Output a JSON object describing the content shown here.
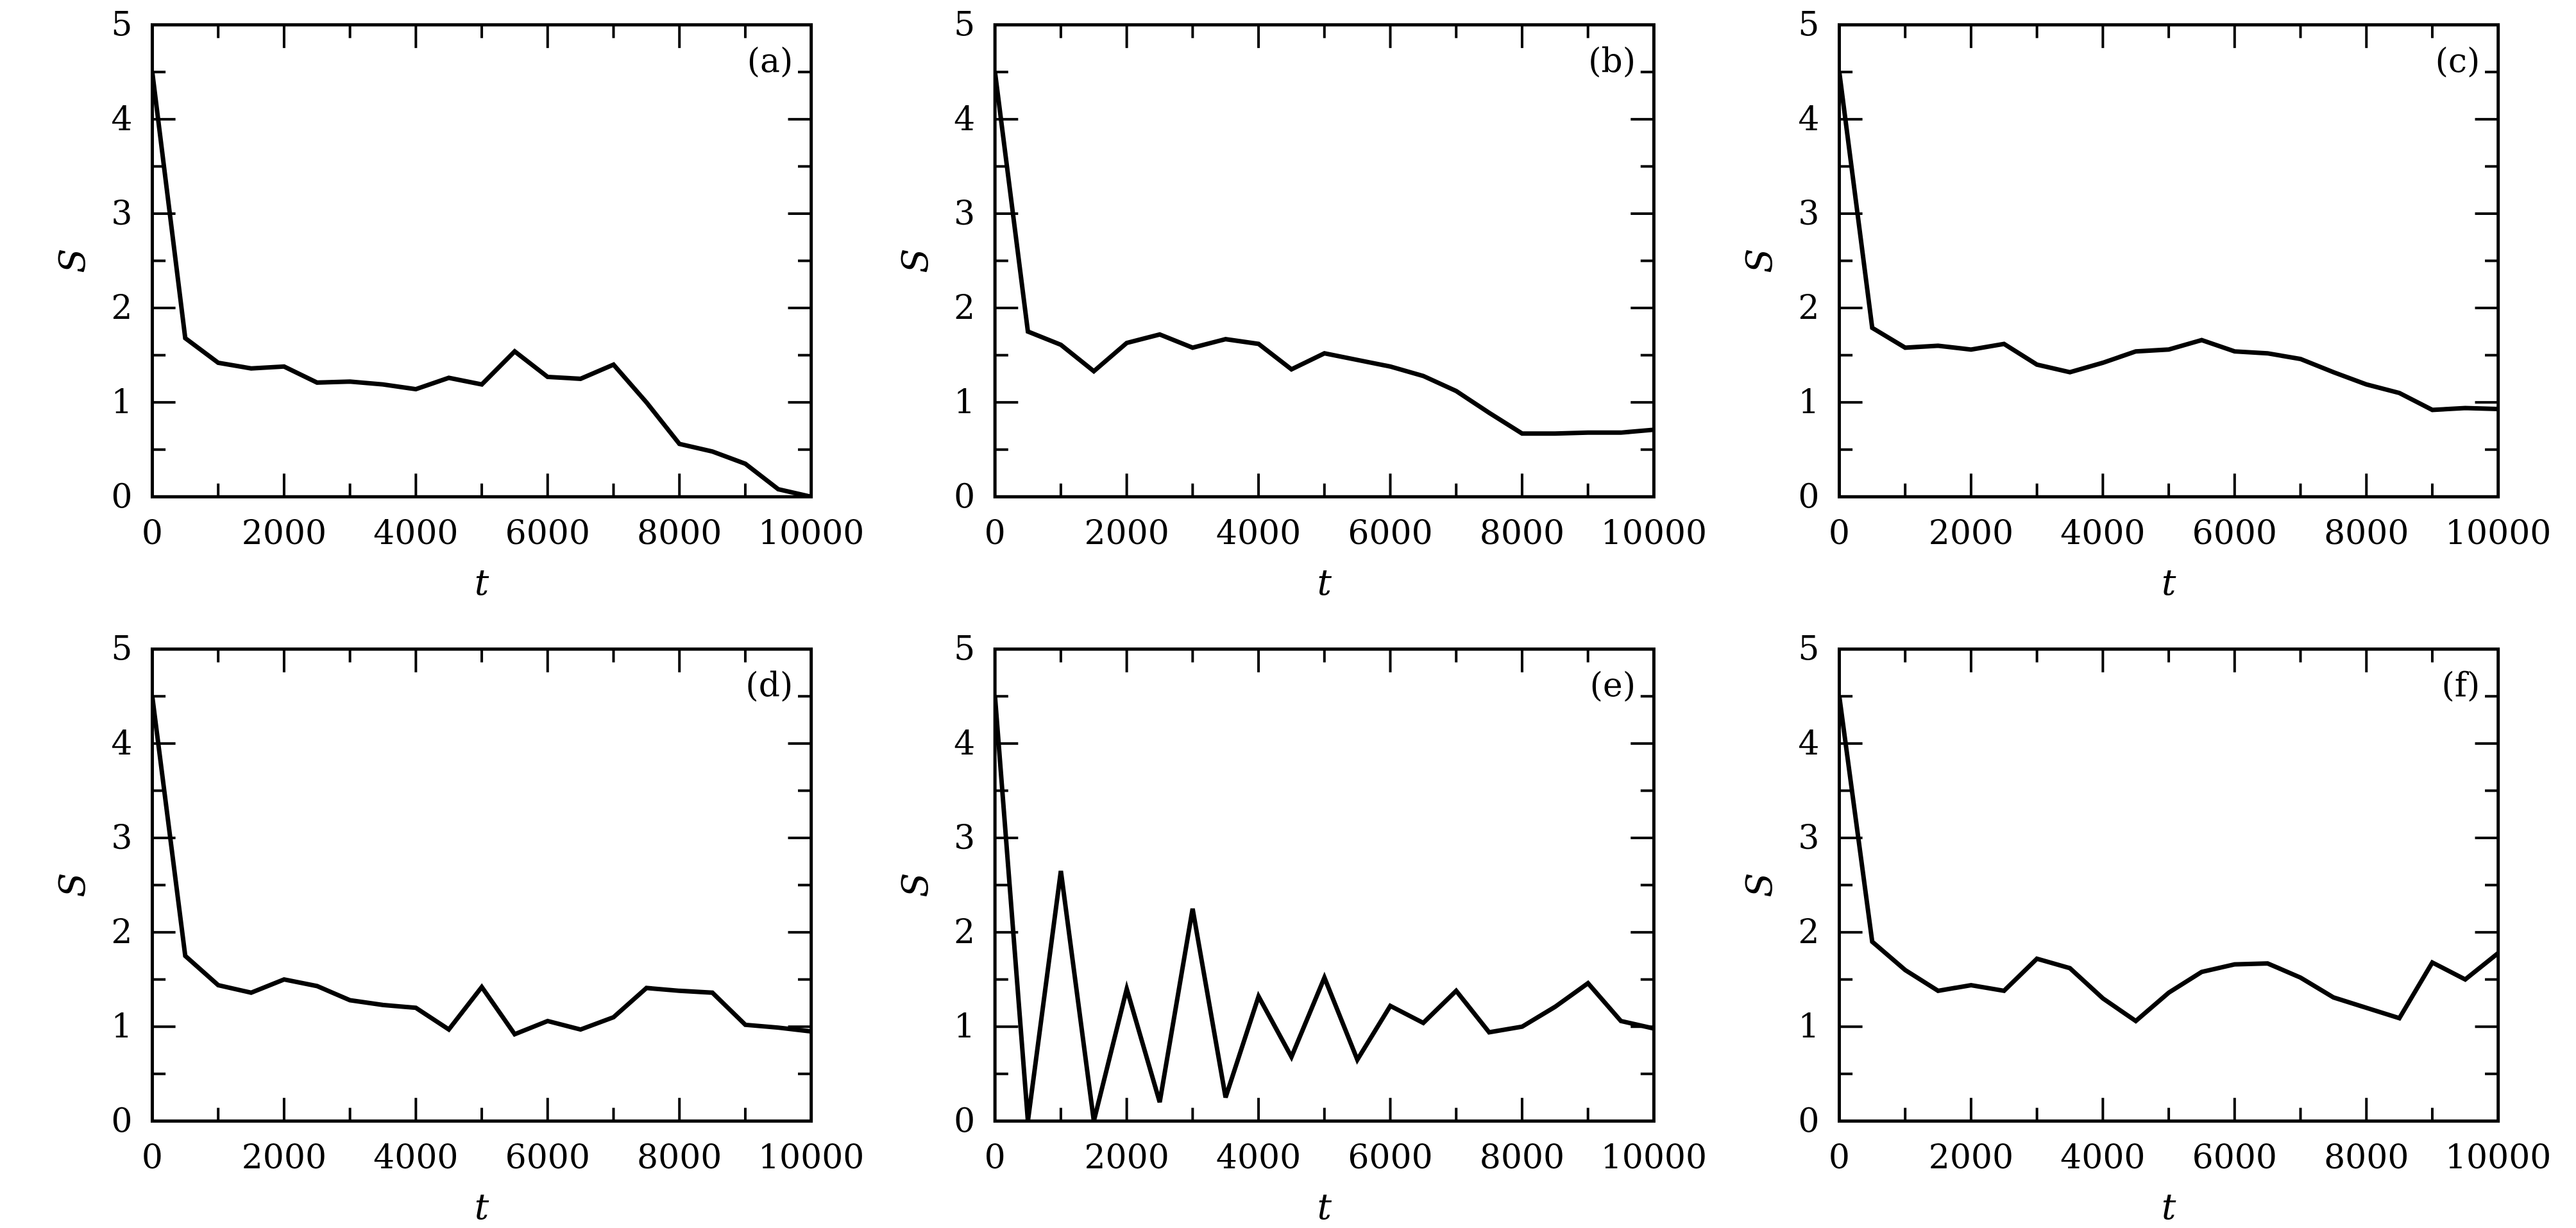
{
  "chart_data": [
    {
      "type": "line",
      "panel_label": "(a)",
      "xlabel": "t",
      "ylabel": "S",
      "xlim": [
        0,
        10000
      ],
      "ylim": [
        0,
        5
      ],
      "xticks": [
        "0",
        "2000",
        "4000",
        "6000",
        "8000",
        "10000"
      ],
      "yticks": [
        "0",
        "1",
        "2",
        "3",
        "4",
        "5"
      ],
      "x": [
        0,
        500,
        1000,
        1500,
        2000,
        2500,
        3000,
        3500,
        4000,
        4500,
        5000,
        5500,
        6000,
        6500,
        7000,
        7500,
        8000,
        8500,
        9000,
        9500,
        10000
      ],
      "y": [
        4.5,
        1.68,
        1.42,
        1.36,
        1.38,
        1.21,
        1.22,
        1.19,
        1.14,
        1.26,
        1.19,
        1.54,
        1.27,
        1.25,
        1.4,
        1.0,
        0.56,
        0.48,
        0.35,
        0.08,
        0.0
      ]
    },
    {
      "type": "line",
      "panel_label": "(b)",
      "xlabel": "t",
      "ylabel": "S",
      "xlim": [
        0,
        10000
      ],
      "ylim": [
        0,
        5
      ],
      "xticks": [
        "0",
        "2000",
        "4000",
        "6000",
        "8000",
        "10000"
      ],
      "yticks": [
        "0",
        "1",
        "2",
        "3",
        "4",
        "5"
      ],
      "x": [
        0,
        500,
        1000,
        1500,
        2000,
        2500,
        3000,
        3500,
        4000,
        4500,
        5000,
        5500,
        6000,
        6500,
        7000,
        7500,
        8000,
        8500,
        9000,
        9500,
        10000
      ],
      "y": [
        4.5,
        1.75,
        1.61,
        1.33,
        1.63,
        1.72,
        1.58,
        1.67,
        1.62,
        1.35,
        1.52,
        1.45,
        1.38,
        1.28,
        1.12,
        0.89,
        0.67,
        0.67,
        0.68,
        0.68,
        0.71
      ]
    },
    {
      "type": "line",
      "panel_label": "(c)",
      "xlabel": "t",
      "ylabel": "S",
      "xlim": [
        0,
        10000
      ],
      "ylim": [
        0,
        5
      ],
      "xticks": [
        "0",
        "2000",
        "4000",
        "6000",
        "8000",
        "10000"
      ],
      "yticks": [
        "0",
        "1",
        "2",
        "3",
        "4",
        "5"
      ],
      "x": [
        0,
        500,
        1000,
        1500,
        2000,
        2500,
        3000,
        3500,
        4000,
        4500,
        5000,
        5500,
        6000,
        6500,
        7000,
        7500,
        8000,
        8500,
        9000,
        9500,
        10000
      ],
      "y": [
        4.5,
        1.79,
        1.58,
        1.6,
        1.56,
        1.62,
        1.4,
        1.32,
        1.42,
        1.54,
        1.56,
        1.66,
        1.54,
        1.52,
        1.46,
        1.32,
        1.19,
        1.1,
        0.92,
        0.94,
        0.93
      ]
    },
    {
      "type": "line",
      "panel_label": "(d)",
      "xlabel": "t",
      "ylabel": "S",
      "xlim": [
        0,
        10000
      ],
      "ylim": [
        0,
        5
      ],
      "xticks": [
        "0",
        "2000",
        "4000",
        "6000",
        "8000",
        "10000"
      ],
      "yticks": [
        "0",
        "1",
        "2",
        "3",
        "4",
        "5"
      ],
      "x": [
        0,
        500,
        1000,
        1500,
        2000,
        2500,
        3000,
        3500,
        4000,
        4500,
        5000,
        5500,
        6000,
        6500,
        7000,
        7500,
        8000,
        8500,
        9000,
        9500,
        10000
      ],
      "y": [
        4.5,
        1.75,
        1.44,
        1.36,
        1.5,
        1.43,
        1.28,
        1.23,
        1.2,
        0.97,
        1.42,
        0.92,
        1.06,
        0.97,
        1.1,
        1.41,
        1.38,
        1.36,
        1.02,
        0.99,
        0.95
      ]
    },
    {
      "type": "line",
      "panel_label": "(e)",
      "xlabel": "t",
      "ylabel": "S",
      "xlim": [
        0,
        10000
      ],
      "ylim": [
        0,
        5
      ],
      "xticks": [
        "0",
        "2000",
        "4000",
        "6000",
        "8000",
        "10000"
      ],
      "yticks": [
        "0",
        "1",
        "2",
        "3",
        "4",
        "5"
      ],
      "x": [
        0,
        500,
        1000,
        1500,
        2000,
        2500,
        3000,
        3500,
        4000,
        4500,
        5000,
        5500,
        6000,
        6500,
        7000,
        7500,
        8000,
        8500,
        9000,
        9500,
        10000
      ],
      "y": [
        4.5,
        0.0,
        2.65,
        0.0,
        1.4,
        0.2,
        2.25,
        0.25,
        1.32,
        0.68,
        1.52,
        0.65,
        1.22,
        1.04,
        1.38,
        0.94,
        1.0,
        1.21,
        1.46,
        1.06,
        0.98
      ]
    },
    {
      "type": "line",
      "panel_label": "(f)",
      "xlabel": "t",
      "ylabel": "S",
      "xlim": [
        0,
        10000
      ],
      "ylim": [
        0,
        5
      ],
      "xticks": [
        "0",
        "2000",
        "4000",
        "6000",
        "8000",
        "10000"
      ],
      "yticks": [
        "0",
        "1",
        "2",
        "3",
        "4",
        "5"
      ],
      "x": [
        0,
        500,
        1000,
        1500,
        2000,
        2500,
        3000,
        3500,
        4000,
        4500,
        5000,
        5500,
        6000,
        6500,
        7000,
        7500,
        8000,
        8500,
        9000,
        9500,
        10000
      ],
      "y": [
        4.5,
        1.9,
        1.6,
        1.38,
        1.44,
        1.38,
        1.72,
        1.62,
        1.3,
        1.06,
        1.36,
        1.58,
        1.66,
        1.67,
        1.52,
        1.31,
        1.2,
        1.09,
        1.68,
        1.5,
        1.78
      ]
    }
  ]
}
